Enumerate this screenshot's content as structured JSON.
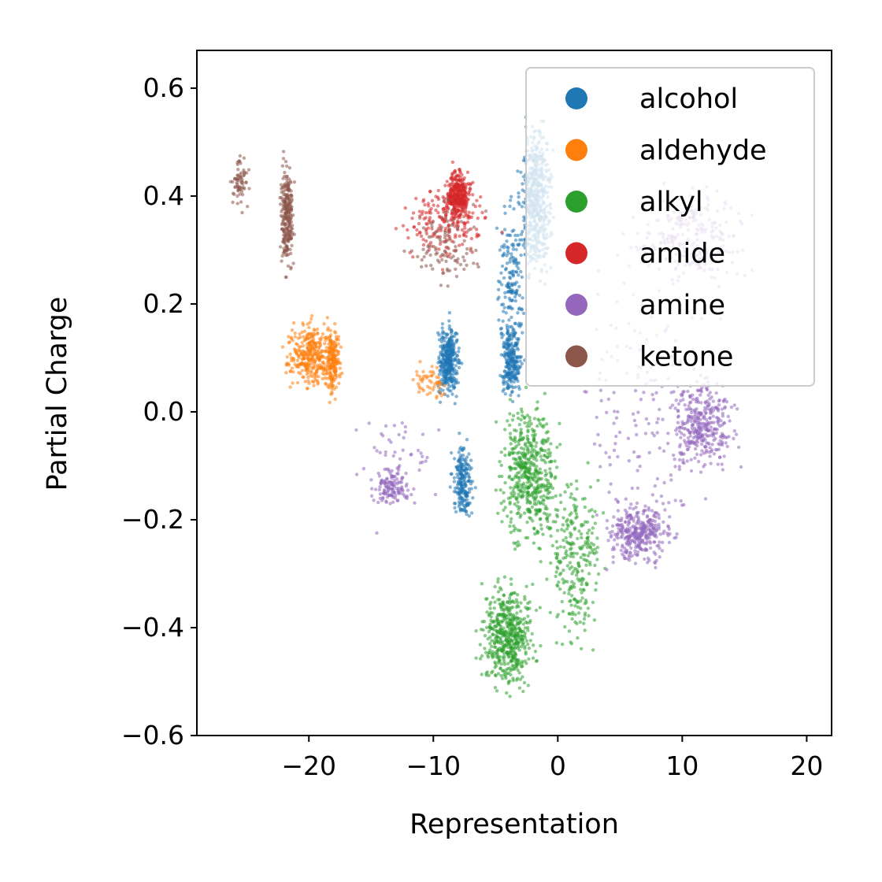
{
  "chart_data": {
    "type": "scatter",
    "title": "",
    "xlabel": "Representation",
    "ylabel": "Partial Charge",
    "xlim": [
      -29,
      22
    ],
    "ylim": [
      -0.6,
      0.67
    ],
    "xticks": [
      -20,
      -10,
      0,
      10,
      20
    ],
    "xtick_labels": [
      "−20",
      "−10",
      "0",
      "10",
      "20"
    ],
    "yticks": [
      -0.6,
      -0.4,
      -0.2,
      0.0,
      0.2,
      0.4,
      0.6
    ],
    "ytick_labels": [
      "−0.6",
      "−0.4",
      "−0.2",
      "0.0",
      "0.2",
      "0.4",
      "0.6"
    ],
    "grid": false,
    "legend_position": "top-right",
    "series": [
      {
        "name": "alcohol",
        "color": "#1f77b4",
        "clusters": [
          {
            "x": [
              -3.5,
              0.0
            ],
            "y": [
              0.2,
              0.58
            ],
            "weight": 3
          },
          {
            "x": [
              -10.0,
              -7.5
            ],
            "y": [
              0.0,
              0.19
            ],
            "weight": 2
          },
          {
            "x": [
              -8.8,
              -6.5
            ],
            "y": [
              -0.23,
              -0.03
            ],
            "weight": 1.2
          },
          {
            "x": [
              -5.0,
              -2.5
            ],
            "y": [
              0.0,
              0.19
            ],
            "weight": 1.4
          },
          {
            "x": [
              -5.5,
              -2.0
            ],
            "y": [
              0.05,
              0.45
            ],
            "weight": 1
          }
        ]
      },
      {
        "name": "aldehyde",
        "color": "#ff7f0e",
        "clusters": [
          {
            "x": [
              -22.5,
              -17.2
            ],
            "y": [
              0.02,
              0.19
            ],
            "weight": 2
          },
          {
            "x": [
              -18.8,
              -17.3
            ],
            "y": [
              0.0,
              0.19
            ],
            "weight": 1
          },
          {
            "x": [
              -12.5,
              -8.0
            ],
            "y": [
              0.0,
              0.12
            ],
            "weight": 0.3
          }
        ]
      },
      {
        "name": "alkyl",
        "color": "#2ca02c",
        "clusters": [
          {
            "x": [
              -5.5,
              1.0
            ],
            "y": [
              -0.3,
              0.07
            ],
            "weight": 3
          },
          {
            "x": [
              -7.0,
              -1.0
            ],
            "y": [
              -0.55,
              -0.28
            ],
            "weight": 3
          },
          {
            "x": [
              -1.5,
              4.5
            ],
            "y": [
              -0.5,
              -0.05
            ],
            "weight": 1.5
          }
        ]
      },
      {
        "name": "amide",
        "color": "#d62728",
        "clusters": [
          {
            "x": [
              -9.5,
              -6.5
            ],
            "y": [
              0.33,
              0.47
            ],
            "weight": 2
          },
          {
            "x": [
              -14.0,
              -4.0
            ],
            "y": [
              0.25,
              0.45
            ],
            "weight": 1
          }
        ]
      },
      {
        "name": "amine",
        "color": "#9467bd",
        "clusters": [
          {
            "x": [
              8.0,
              15.5
            ],
            "y": [
              -0.15,
              0.1
            ],
            "weight": 2
          },
          {
            "x": [
              3.0,
              10.0
            ],
            "y": [
              -0.3,
              -0.15
            ],
            "weight": 2
          },
          {
            "x": [
              4.0,
              17.5
            ],
            "y": [
              0.2,
              0.45
            ],
            "weight": 1.5
          },
          {
            "x": [
              -15.5,
              -11.0
            ],
            "y": [
              -0.18,
              -0.1
            ],
            "weight": 0.6
          },
          {
            "x": [
              -17.5,
              -9.0
            ],
            "y": [
              -0.25,
              0.05
            ],
            "weight": 0.4
          },
          {
            "x": [
              0.0,
              15.0
            ],
            "y": [
              -0.35,
              0.35
            ],
            "weight": 1
          }
        ]
      },
      {
        "name": "ketone",
        "color": "#8c564b",
        "clusters": [
          {
            "x": [
              -22.5,
              -21.0
            ],
            "y": [
              0.23,
              0.5
            ],
            "weight": 1.5
          },
          {
            "x": [
              -26.5,
              -24.5
            ],
            "y": [
              0.35,
              0.5
            ],
            "weight": 0.4
          },
          {
            "x": [
              -13.0,
              -5.0
            ],
            "y": [
              0.2,
              0.42
            ],
            "weight": 0.6
          }
        ]
      }
    ]
  }
}
